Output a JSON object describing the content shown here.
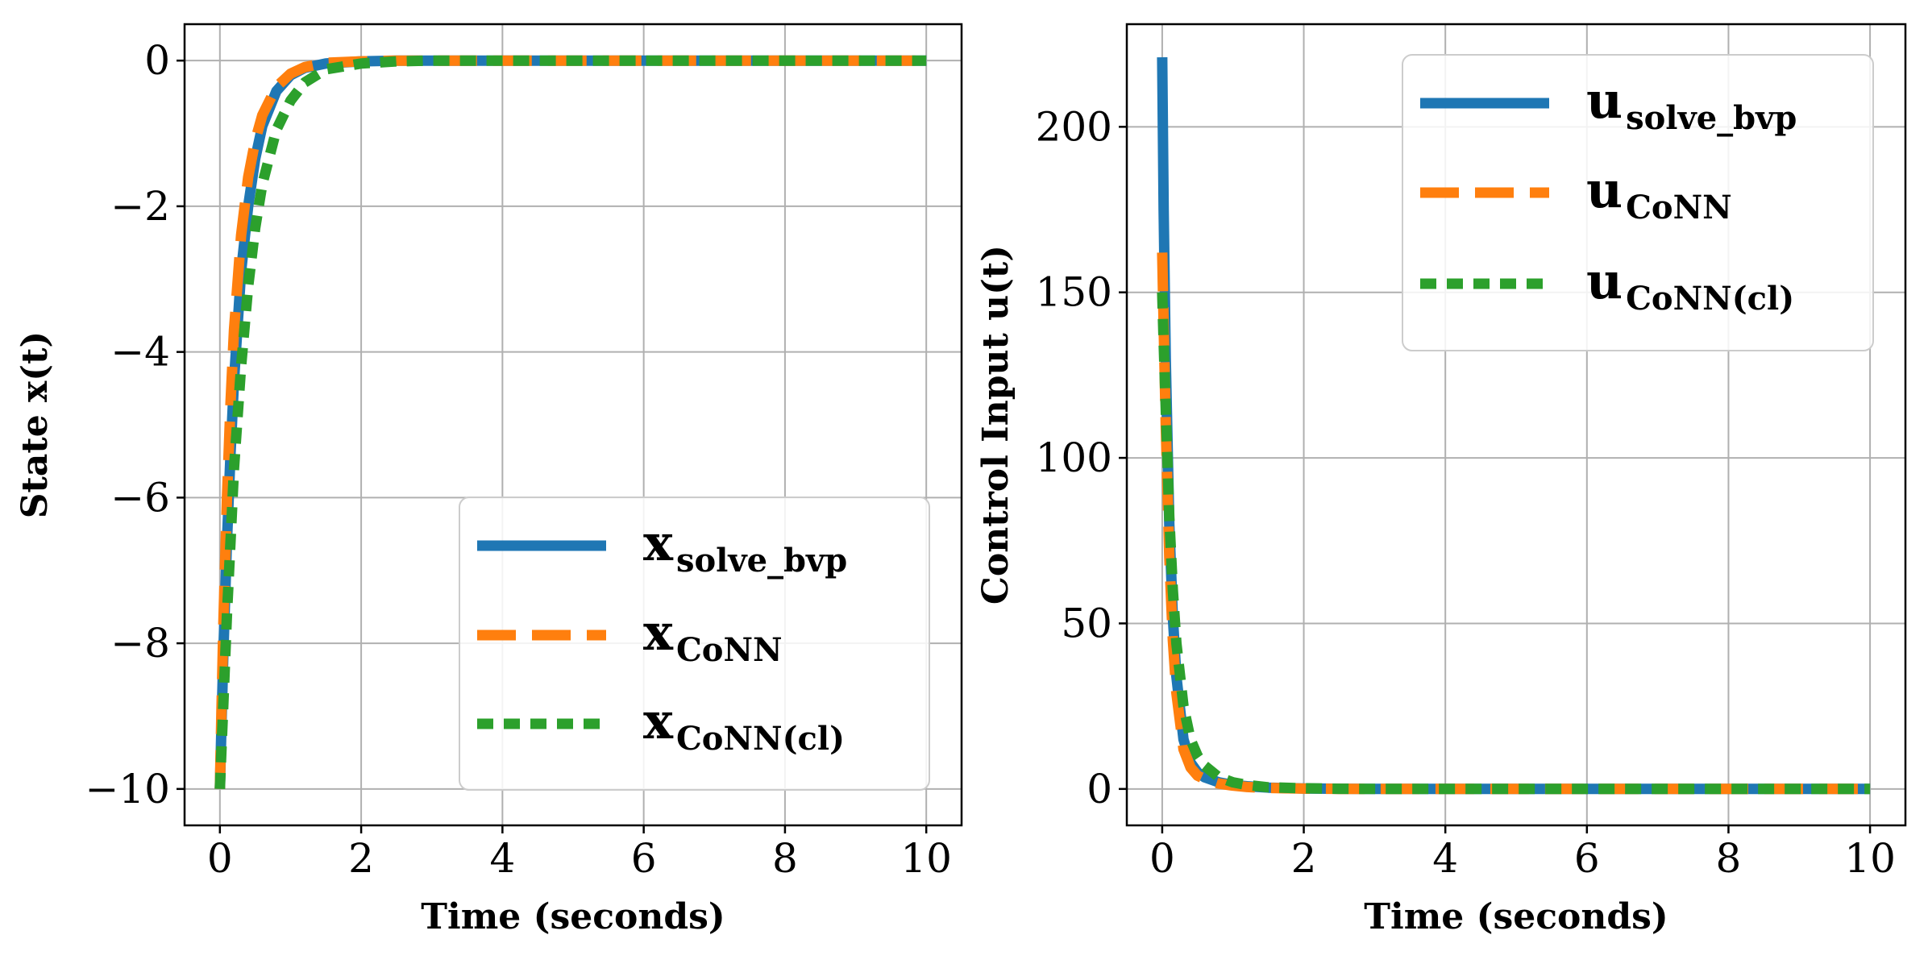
{
  "chart_data": [
    {
      "type": "line",
      "title": "",
      "xlabel": "Time (seconds)",
      "ylabel": "State x(t)",
      "xlim": [
        -0.5,
        10.5
      ],
      "ylim": [
        -10.5,
        0.5
      ],
      "xticks": [
        0,
        2,
        4,
        6,
        8,
        10
      ],
      "xtick_labels": [
        "0",
        "2",
        "4",
        "6",
        "8",
        "10"
      ],
      "yticks": [
        0,
        -2,
        -4,
        -6,
        -8,
        -10
      ],
      "ytick_labels": [
        "0",
        "−2",
        "−4",
        "−6",
        "−8",
        "−10"
      ],
      "grid": true,
      "legend_position": "lower-right",
      "x": [
        0,
        0.02,
        0.05,
        0.1,
        0.15,
        0.2,
        0.3,
        0.4,
        0.5,
        0.6,
        0.8,
        1.0,
        1.2,
        1.5,
        2.0,
        2.5,
        3.0,
        4.0,
        6.0,
        8.0,
        10.0
      ],
      "series": [
        {
          "key": "solve_bvp",
          "legend_main": "x",
          "legend_sub": "solve_bvp",
          "color": "#1f77b4",
          "style": "solid",
          "values": [
            -10,
            -9.2,
            -8.1,
            -6.6,
            -5.4,
            -4.4,
            -2.9,
            -2.0,
            -1.35,
            -0.9,
            -0.42,
            -0.2,
            -0.1,
            -0.04,
            -0.01,
            0,
            0,
            0,
            0,
            0,
            0
          ]
        },
        {
          "key": "conn",
          "legend_main": "x",
          "legend_sub": "CoNN",
          "color": "#ff7f0e",
          "style": "dashed",
          "values": [
            -10,
            -9.0,
            -7.7,
            -6.0,
            -4.7,
            -3.7,
            -2.4,
            -1.6,
            -1.1,
            -0.75,
            -0.36,
            -0.18,
            -0.09,
            -0.03,
            -0.01,
            0,
            0,
            0,
            0,
            0,
            0
          ]
        },
        {
          "key": "conn_cl",
          "legend_main": "x",
          "legend_sub": "CoNN(cl)",
          "color": "#2ca02c",
          "style": "dotted",
          "values": [
            -10,
            -9.5,
            -8.8,
            -7.6,
            -6.6,
            -5.6,
            -4.2,
            -3.1,
            -2.3,
            -1.7,
            -0.95,
            -0.55,
            -0.3,
            -0.12,
            -0.04,
            -0.01,
            0,
            0,
            0,
            0,
            0
          ]
        }
      ]
    },
    {
      "type": "line",
      "title": "",
      "xlabel": "Time (seconds)",
      "ylabel": "Control Input u(t)",
      "xlim": [
        -0.5,
        10.5
      ],
      "ylim": [
        -11,
        231
      ],
      "xticks": [
        0,
        2,
        4,
        6,
        8,
        10
      ],
      "xtick_labels": [
        "0",
        "2",
        "4",
        "6",
        "8",
        "10"
      ],
      "yticks": [
        0,
        50,
        100,
        150,
        200
      ],
      "ytick_labels": [
        "0",
        "50",
        "100",
        "150",
        "200"
      ],
      "grid": true,
      "legend_position": "upper-right",
      "x": [
        0,
        0.02,
        0.05,
        0.1,
        0.15,
        0.2,
        0.3,
        0.4,
        0.5,
        0.6,
        0.8,
        1.0,
        1.2,
        1.5,
        2.0,
        2.5,
        3.0,
        4.0,
        6.0,
        8.0,
        10.0
      ],
      "series": [
        {
          "key": "solve_bvp",
          "legend_main": "u",
          "legend_sub": "solve_bvp",
          "color": "#1f77b4",
          "style": "solid",
          "values": [
            221,
            175,
            130,
            80,
            52,
            34,
            15,
            8,
            5,
            3.5,
            2,
            1.2,
            0.8,
            0.4,
            0.15,
            0.05,
            0,
            0,
            0,
            0,
            0
          ]
        },
        {
          "key": "conn",
          "legend_main": "u",
          "legend_sub": "CoNN",
          "color": "#ff7f0e",
          "style": "dashed",
          "values": [
            162,
            140,
            110,
            70,
            45,
            29,
            12,
            6.5,
            4,
            3,
            1.6,
            1,
            0.6,
            0.3,
            0.1,
            0.03,
            0,
            0,
            0,
            0,
            0
          ]
        },
        {
          "key": "conn_cl",
          "legend_main": "u",
          "legend_sub": "CoNN(cl)",
          "color": "#2ca02c",
          "style": "dotted",
          "values": [
            150,
            135,
            115,
            82,
            60,
            44,
            25,
            15,
            10,
            7,
            3.5,
            2,
            1.2,
            0.5,
            0.2,
            0.05,
            0,
            0,
            0,
            0,
            0
          ]
        }
      ]
    }
  ]
}
